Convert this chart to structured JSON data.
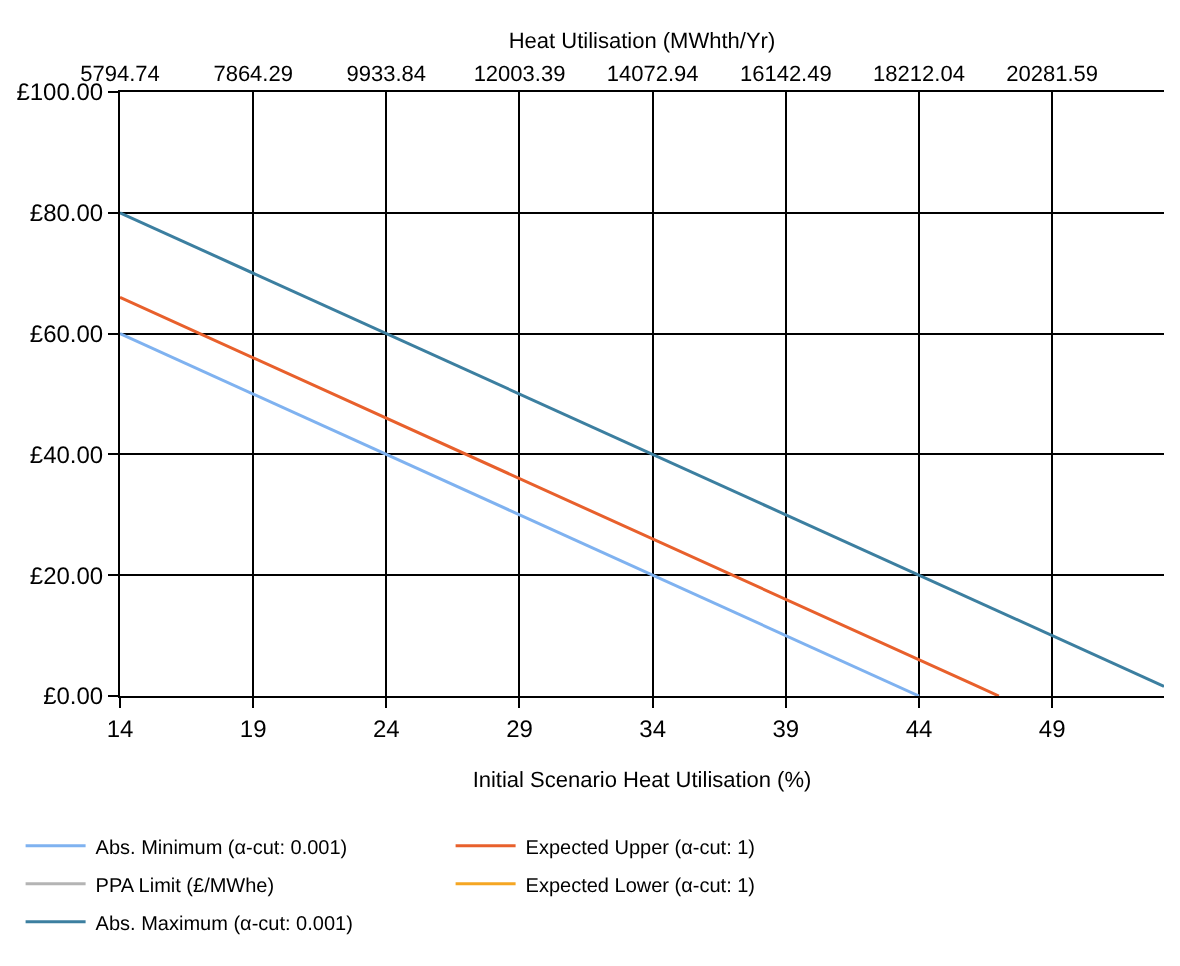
{
  "chart_data": {
    "type": "line",
    "xlabel": "Initial Scenario Heat Utilisation (%)",
    "x2label": "Heat Utilisation (MWhth/Yr)",
    "xlim": [
      14,
      53.2
    ],
    "xticks": [
      14,
      19,
      24,
      29,
      34,
      39,
      44,
      49
    ],
    "x2lim": [
      5794.74,
      22020
    ],
    "x2ticks": [
      5794.74,
      7864.29,
      9933.84,
      12003.39,
      14072.94,
      16142.49,
      18212.04,
      20281.59
    ],
    "ylim": [
      0,
      100
    ],
    "yticks": [
      {
        "value": 0,
        "label": "£0.00"
      },
      {
        "value": 20,
        "label": "£20.00"
      },
      {
        "value": 40,
        "label": "£40.00"
      },
      {
        "value": 60,
        "label": "£60.00"
      },
      {
        "value": 80,
        "label": "£80.00"
      },
      {
        "value": 100,
        "label": "£100.00"
      }
    ],
    "grid": true,
    "legend": "bottom",
    "marker": "none",
    "line_style": "solid",
    "series": [
      {
        "name": "Abs. Minimum (α-cut: 0.001)",
        "color": "#7fb2f0",
        "x": [
          14,
          44
        ],
        "values": [
          60,
          0
        ]
      },
      {
        "name": "Expected Upper (α-cut: 1)",
        "color": "#e8602c",
        "x": [
          14,
          46,
          47
        ],
        "values": [
          66,
          2,
          0
        ]
      },
      {
        "name": "PPA Limit (£/MWhe)",
        "color": "#b4b4b4"
      },
      {
        "name": "Expected Lower (α-cut: 1)",
        "color": "#f5a623"
      },
      {
        "name": "Abs. Maximum (α-cut: 0.001)",
        "color": "#3c7fa0",
        "x": [
          14,
          53.2
        ],
        "values": [
          80,
          1.6
        ]
      }
    ]
  }
}
